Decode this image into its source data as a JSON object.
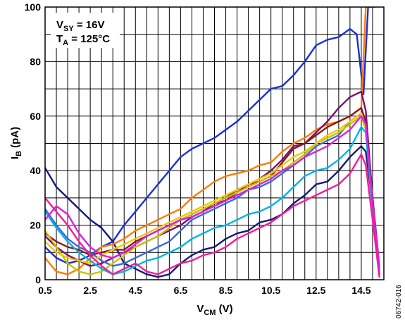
{
  "chart_data": {
    "type": "line",
    "title": "",
    "xlabel": {
      "main": "V",
      "sub": "CM",
      "unit": " (V)"
    },
    "ylabel": {
      "main": "I",
      "sub": "B",
      "unit": " (pA)"
    },
    "xlim": [
      0.5,
      15.5
    ],
    "ylim": [
      0,
      100
    ],
    "xticks": [
      0.5,
      2.5,
      4.5,
      6.5,
      8.5,
      10.5,
      12.5,
      14.5
    ],
    "xtick_labels": [
      "0.5",
      "2.5",
      "4.5",
      "6.5",
      "8.5",
      "10.5",
      "12.5",
      "14.5"
    ],
    "yticks": [
      0,
      20,
      40,
      60,
      80,
      100
    ],
    "ytick_labels": [
      "0",
      "20",
      "40",
      "60",
      "80",
      "100"
    ],
    "grid": true,
    "annotations": [
      {
        "main": "V",
        "sub": "SY",
        "rest": " = 16V"
      },
      {
        "main": "T",
        "sub": "A",
        "rest": " = 125°C"
      }
    ],
    "figure_id": "06742-016",
    "series": [
      {
        "color": "#1a2fd6",
        "x": [
          0.5,
          1.0,
          1.5,
          2.0,
          2.5,
          3.0,
          3.5,
          4.0,
          4.5,
          5.0,
          5.5,
          6.0,
          6.5,
          7.0,
          7.5,
          8.0,
          8.5,
          9.0,
          9.5,
          10.0,
          10.5,
          11.0,
          11.5,
          12.0,
          12.5,
          13.0,
          13.5,
          14.0,
          14.3,
          14.6,
          14.8,
          15.0
        ],
        "y": [
          12,
          8,
          6,
          7,
          9,
          12,
          14,
          20,
          25,
          30,
          35,
          40,
          45,
          48,
          50,
          52,
          55,
          58,
          62,
          66,
          70,
          71,
          75,
          80,
          86,
          88,
          89,
          92,
          90,
          68,
          100,
          100
        ]
      },
      {
        "color": "#151a7a",
        "x": [
          0.5,
          1.0,
          1.5,
          2.0,
          2.5,
          3.0,
          3.5,
          4.0,
          4.5,
          5.0,
          5.5,
          6.0,
          6.5,
          7.0,
          7.5,
          8.0,
          8.5,
          9.0,
          9.5,
          10.0,
          10.5,
          11.0,
          11.5,
          12.0,
          12.5,
          13.0,
          13.5,
          14.0,
          14.5,
          14.7,
          15.0,
          15.3
        ],
        "y": [
          41,
          34,
          30,
          26,
          22,
          19,
          14,
          6,
          4,
          2,
          1,
          2,
          6,
          9,
          11,
          12,
          15,
          17,
          18,
          21,
          22,
          24,
          28,
          31,
          35,
          36,
          40,
          45,
          49,
          47,
          28,
          2
        ]
      },
      {
        "color": "#ff7a00",
        "x": [
          0.5,
          1.0,
          1.5,
          2.0,
          2.5,
          3.0,
          3.5,
          4.0,
          4.5,
          5.0,
          5.5,
          6.0,
          6.5,
          7.0,
          7.5,
          8.0,
          8.5,
          9.0,
          9.5,
          10.0,
          10.5,
          11.0,
          11.5,
          12.0,
          12.5,
          13.0,
          13.5,
          14.0,
          14.5,
          14.7,
          14.9,
          15.1
        ],
        "y": [
          8,
          3,
          2,
          4,
          8,
          12,
          13,
          15,
          18,
          20,
          22,
          24,
          26,
          30,
          33,
          36,
          38,
          39,
          40,
          42,
          43,
          47,
          50,
          52,
          55,
          57,
          58,
          60,
          63,
          100,
          100,
          100
        ]
      },
      {
        "color": "#7a1070",
        "x": [
          0.5,
          1.0,
          1.5,
          2.0,
          2.5,
          3.0,
          3.5,
          4.0,
          4.5,
          5.0,
          5.5,
          6.0,
          6.5,
          7.0,
          7.5,
          8.0,
          8.5,
          9.0,
          9.5,
          10.0,
          10.5,
          11.0,
          11.5,
          12.0,
          12.5,
          13.0,
          13.5,
          14.0,
          14.5,
          14.7,
          15.0,
          15.3
        ],
        "y": [
          16,
          12,
          9,
          7,
          5,
          6,
          8,
          10,
          12,
          14,
          16,
          18,
          20,
          23,
          25,
          28,
          29,
          32,
          35,
          37,
          40,
          44,
          49,
          50,
          54,
          58,
          63,
          67,
          69,
          62,
          30,
          5
        ]
      },
      {
        "color": "#8a1a1a",
        "x": [
          0.5,
          1.0,
          1.5,
          2.0,
          2.5,
          3.0,
          3.5,
          4.0,
          4.5,
          5.0,
          5.5,
          6.0,
          6.5,
          7.0,
          7.5,
          8.0,
          8.5,
          9.0,
          9.5,
          10.0,
          10.5,
          11.0,
          11.5,
          12.0,
          12.5,
          13.0,
          13.5,
          14.0,
          14.5,
          14.7,
          15.0,
          15.3
        ],
        "y": [
          17,
          14,
          12,
          11,
          9,
          10,
          11,
          11,
          14,
          16,
          18,
          20,
          22,
          24,
          26,
          28,
          30,
          33,
          35,
          36,
          38,
          43,
          48,
          50,
          53,
          56,
          58,
          60,
          63,
          58,
          30,
          3
        ]
      },
      {
        "color": "#3a6ad6",
        "x": [
          0.5,
          1.0,
          1.5,
          2.0,
          2.5,
          3.0,
          3.5,
          4.0,
          4.5,
          5.0,
          5.5,
          6.0,
          6.5,
          7.0,
          7.5,
          8.0,
          8.5,
          9.0,
          9.5,
          10.0,
          10.5,
          11.0,
          11.5,
          12.0,
          12.5,
          13.0,
          13.5,
          14.0,
          14.5,
          14.7,
          15.0,
          15.3
        ],
        "y": [
          26,
          20,
          15,
          12,
          10,
          7,
          5,
          6,
          8,
          10,
          12,
          14,
          18,
          22,
          24,
          26,
          28,
          30,
          33,
          34,
          36,
          39,
          42,
          45,
          49,
          51,
          53,
          58,
          61,
          57,
          28,
          4
        ]
      },
      {
        "color": "#c8c400",
        "x": [
          0.5,
          1.0,
          1.5,
          2.0,
          2.5,
          3.0,
          3.5,
          4.0,
          4.5,
          5.0,
          5.5,
          6.0,
          6.5,
          7.0,
          7.5,
          8.0,
          8.5,
          9.0,
          9.5,
          10.0,
          10.5,
          11.0,
          11.5,
          12.0,
          12.5,
          13.0,
          13.5,
          14.0,
          14.5,
          14.7,
          15.0,
          15.3
        ],
        "y": [
          18,
          12,
          6,
          3,
          2,
          3,
          6,
          9,
          12,
          14,
          16,
          19,
          22,
          24,
          26,
          28,
          30,
          32,
          34,
          36,
          38,
          40,
          43,
          46,
          50,
          52,
          54,
          57,
          60,
          55,
          26,
          3
        ]
      },
      {
        "color": "#f0c800",
        "x": [
          0.5,
          1.0,
          1.5,
          2.0,
          2.5,
          3.0,
          3.5,
          4.0,
          4.5,
          5.0,
          5.5,
          6.0,
          6.5,
          7.0,
          7.5,
          8.0,
          8.5,
          9.0,
          9.5,
          10.0,
          10.5,
          11.0,
          11.5,
          12.0,
          12.5,
          13.0,
          13.5,
          14.0,
          14.5,
          14.7,
          15.0,
          15.3
        ],
        "y": [
          14,
          10,
          8,
          7,
          6,
          9,
          11,
          13,
          15,
          17,
          19,
          21,
          23,
          25,
          27,
          29,
          31,
          33,
          35,
          37,
          39,
          42,
          45,
          47,
          50,
          53,
          55,
          58,
          61,
          56,
          27,
          4
        ]
      },
      {
        "color": "#00b4e6",
        "x": [
          0.5,
          1.0,
          1.5,
          2.0,
          2.5,
          3.0,
          3.5,
          4.0,
          4.5,
          5.0,
          5.5,
          6.0,
          6.5,
          7.0,
          7.5,
          8.0,
          8.5,
          9.0,
          9.5,
          10.0,
          10.5,
          11.0,
          11.5,
          12.0,
          12.5,
          13.0,
          13.5,
          14.0,
          14.5,
          14.7,
          15.0,
          15.3
        ],
        "y": [
          25,
          19,
          14,
          10,
          7,
          4,
          2,
          3,
          5,
          7,
          8,
          10,
          12,
          15,
          17,
          19,
          20,
          22,
          24,
          25,
          27,
          30,
          34,
          38,
          40,
          41,
          44,
          48,
          56,
          54,
          26,
          3
        ]
      },
      {
        "color": "#f01e96",
        "x": [
          0.5,
          1.0,
          1.5,
          2.0,
          2.5,
          3.0,
          3.5,
          4.0,
          4.5,
          5.0,
          5.5,
          6.0,
          6.5,
          7.0,
          7.5,
          8.0,
          8.5,
          9.0,
          9.5,
          10.0,
          10.5,
          11.0,
          11.5,
          12.0,
          12.5,
          13.0,
          13.5,
          14.0,
          14.5,
          14.7,
          15.0,
          15.3
        ],
        "y": [
          30,
          25,
          20,
          14,
          9,
          5,
          2,
          4,
          6,
          3,
          2,
          4,
          6,
          7,
          9,
          10,
          12,
          15,
          17,
          19,
          21,
          24,
          27,
          29,
          31,
          33,
          35,
          39,
          46,
          42,
          22,
          1
        ]
      },
      {
        "color": "#e01ee0",
        "x": [
          0.5,
          1.0,
          1.5,
          2.0,
          2.5,
          3.0,
          3.5,
          4.0,
          4.5,
          5.0,
          5.5,
          6.0,
          6.5,
          7.0,
          7.5,
          8.0,
          8.5,
          9.0,
          9.5,
          10.0,
          10.5,
          11.0,
          11.5,
          12.0,
          12.5,
          13.0,
          13.5,
          14.0,
          14.5,
          14.7,
          15.0,
          15.3
        ],
        "y": [
          22,
          27,
          24,
          17,
          12,
          9,
          8,
          10,
          13,
          16,
          18,
          20,
          22,
          23,
          25,
          27,
          29,
          31,
          33,
          35,
          37,
          40,
          42,
          45,
          47,
          49,
          52,
          55,
          60,
          57,
          28,
          4
        ]
      }
    ]
  }
}
